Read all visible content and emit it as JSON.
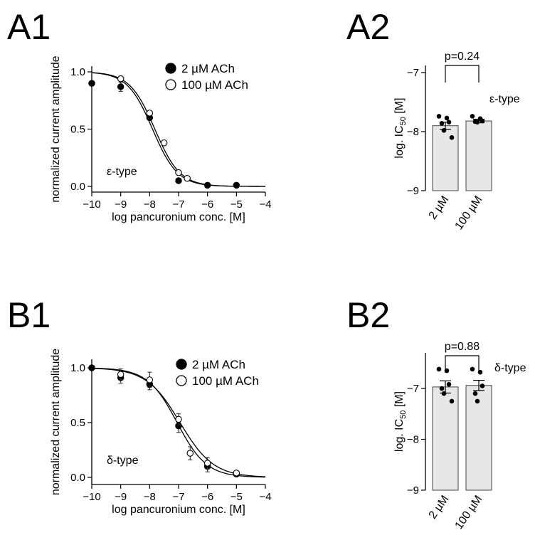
{
  "chart_data": [
    {
      "panel": "A1",
      "type": "scatter",
      "xlabel": "log pancuronium conc. [M]",
      "ylabel": "normalized current amplitude",
      "xlim": [
        -10,
        -4
      ],
      "ylim": [
        0,
        1
      ],
      "xticks": [
        -10,
        -9,
        -8,
        -7,
        -6,
        -5,
        -4
      ],
      "yticks": [
        0.0,
        0.5,
        1.0
      ],
      "ytick_labels": [
        "0.0",
        "0.5",
        "1.0"
      ],
      "annotation": "ε-type",
      "legend": [
        "2 µM ACh",
        "100 µM ACh"
      ],
      "legend_position": "top-right",
      "series": [
        {
          "name": "2 µM ACh",
          "marker": "filled",
          "x": [
            -10,
            -9,
            -8,
            -7,
            -6,
            -5
          ],
          "y": [
            0.9,
            0.87,
            0.6,
            0.05,
            0.01,
            0.01
          ],
          "err": [
            0.01,
            0.04,
            0.02,
            0.01,
            0.005,
            0.005
          ],
          "fit_logIC50": -7.9,
          "fit_hill": 1.0
        },
        {
          "name": "100 µM ACh",
          "marker": "open",
          "x": [
            -9,
            -8,
            -7.5,
            -7,
            -6.7
          ],
          "y": [
            0.94,
            0.64,
            0.38,
            0.12,
            0.07
          ],
          "err": [
            0.02,
            0.02,
            0.02,
            0.01,
            0.01
          ],
          "fit_logIC50": -7.82,
          "fit_hill": 1.0
        }
      ]
    },
    {
      "panel": "A2",
      "type": "bar",
      "categories": [
        "2 µM",
        "100 µM"
      ],
      "values": [
        -7.9,
        -7.82
      ],
      "sem": [
        0.06,
        0.03
      ],
      "points": [
        [
          -7.74,
          -7.77,
          -7.84,
          -7.86,
          -7.98,
          -8.1
        ],
        [
          -7.74,
          -7.78,
          -7.82,
          -7.83,
          -7.84
        ]
      ],
      "ylabel": "log. IC50 [M]",
      "ylim": [
        -9,
        -7
      ],
      "yticks": [
        -9,
        -8,
        -7
      ],
      "p_label": "p=0.24",
      "annotation": "ε-type"
    },
    {
      "panel": "B1",
      "type": "scatter",
      "xlabel": "log pancuronium conc. [M]",
      "ylabel": "normalized current amplitude",
      "xlim": [
        -10,
        -4
      ],
      "ylim": [
        0,
        1
      ],
      "xticks": [
        -10,
        -9,
        -8,
        -7,
        -6,
        -5,
        -4
      ],
      "yticks": [
        0.0,
        0.5,
        1.0
      ],
      "ytick_labels": [
        "0.0",
        "0.5",
        "1.0"
      ],
      "annotation": "δ-type",
      "legend": [
        "2 µM ACh",
        "100 µM ACh"
      ],
      "legend_position": "top-right",
      "series": [
        {
          "name": "2 µM ACh",
          "marker": "filled",
          "x": [
            -10,
            -9,
            -8,
            -7,
            -6,
            -5
          ],
          "y": [
            1.0,
            0.91,
            0.85,
            0.47,
            0.1,
            0.03
          ],
          "err": [
            0.01,
            0.05,
            0.05,
            0.06,
            0.05,
            0.02
          ],
          "fit_logIC50": -6.95,
          "fit_hill": 0.75
        },
        {
          "name": "100 µM ACh",
          "marker": "open",
          "x": [
            -9,
            -8,
            -7,
            -6.6,
            -6,
            -5
          ],
          "y": [
            0.94,
            0.89,
            0.53,
            0.22,
            0.13,
            0.04
          ],
          "err": [
            0.05,
            0.07,
            0.05,
            0.06,
            0.05,
            0.02
          ],
          "fit_logIC50": -7.05,
          "fit_hill": 0.85
        }
      ]
    },
    {
      "panel": "B2",
      "type": "bar",
      "categories": [
        "2 µM",
        "100 µM"
      ],
      "values": [
        -6.97,
        -6.94
      ],
      "sem": [
        0.12,
        0.1
      ],
      "points": [
        [
          -6.62,
          -6.65,
          -6.92,
          -7.0,
          -7.1,
          -7.25
        ],
        [
          -6.62,
          -6.68,
          -6.95,
          -7.1,
          -7.25
        ]
      ],
      "ylabel": "log. IC50 [M]",
      "ylim": [
        -9,
        -6.3
      ],
      "yticks": [
        -9,
        -8,
        -7
      ],
      "p_label": "p=0.88",
      "annotation": "δ-type"
    }
  ],
  "panel_labels": [
    "A1",
    "A2",
    "B1",
    "B2"
  ]
}
